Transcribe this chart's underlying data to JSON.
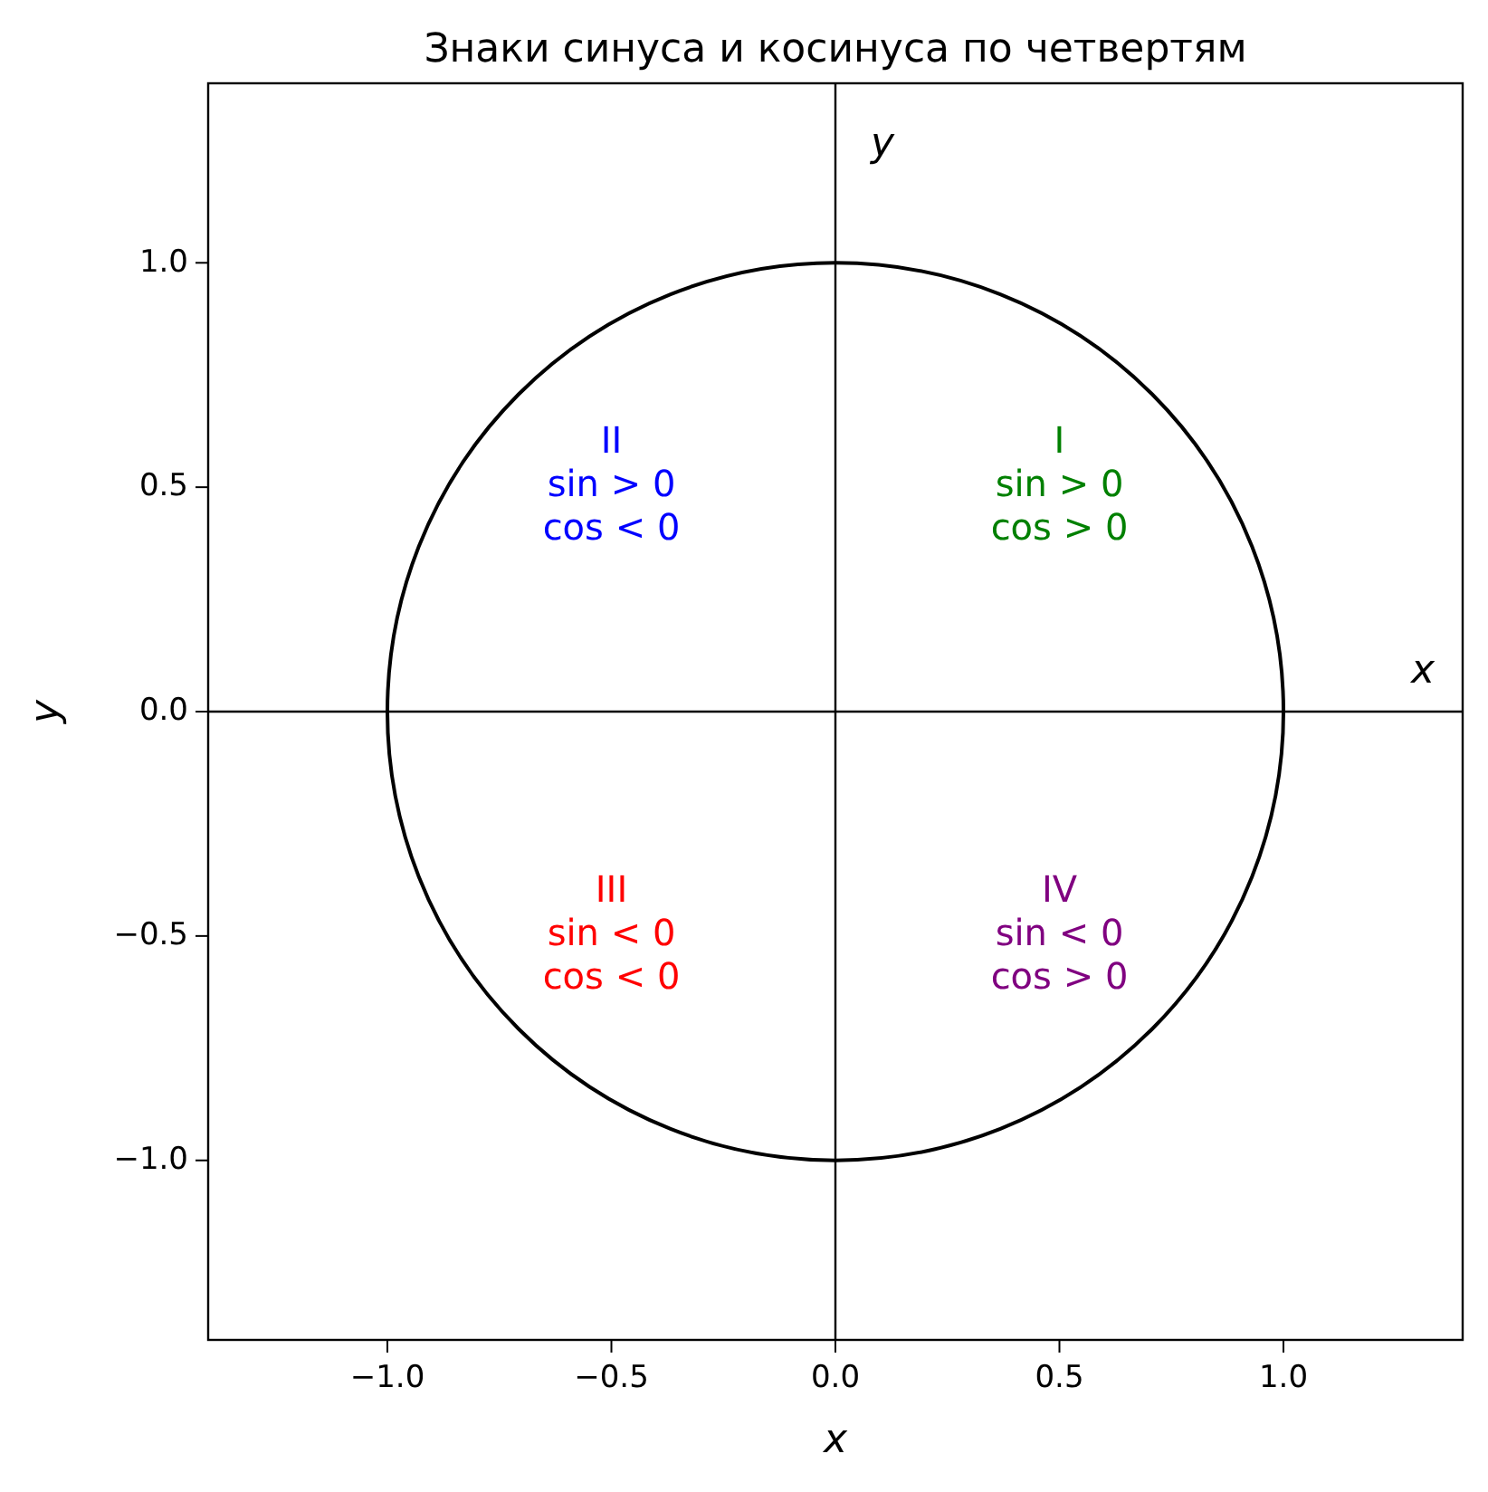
{
  "chart_data": {
    "type": "line",
    "title": "Знаки синуса и косинуса по четвертям",
    "xlabel": "x",
    "ylabel": "y",
    "xlim": [
      -1.4,
      1.4
    ],
    "ylim": [
      -1.4,
      1.4
    ],
    "xticks": [
      {
        "value": -1,
        "label": "−1.0"
      },
      {
        "value": -0.5,
        "label": "−0.5"
      },
      {
        "value": 0,
        "label": "0.0"
      },
      {
        "value": 0.5,
        "label": "0.5"
      },
      {
        "value": 1,
        "label": "1.0"
      }
    ],
    "yticks": [
      {
        "value": -1,
        "label": "−1.0"
      },
      {
        "value": -0.5,
        "label": "−0.5"
      },
      {
        "value": 0,
        "label": "0.0"
      },
      {
        "value": 0.5,
        "label": "0.5"
      },
      {
        "value": 1,
        "label": "1.0"
      }
    ],
    "ref_lines": [
      {
        "axis": "y",
        "value": 0,
        "label": "x",
        "color": "#000000"
      },
      {
        "axis": "x",
        "value": 0,
        "label": "y",
        "color": "#000000"
      }
    ],
    "annotations": [
      "I\nsin > 0\ncos > 0",
      "II\nsin > 0\ncos < 0",
      "III\nsin < 0\ncos < 0",
      "IV\nsin < 0\ncos > 0"
    ]
  }
}
